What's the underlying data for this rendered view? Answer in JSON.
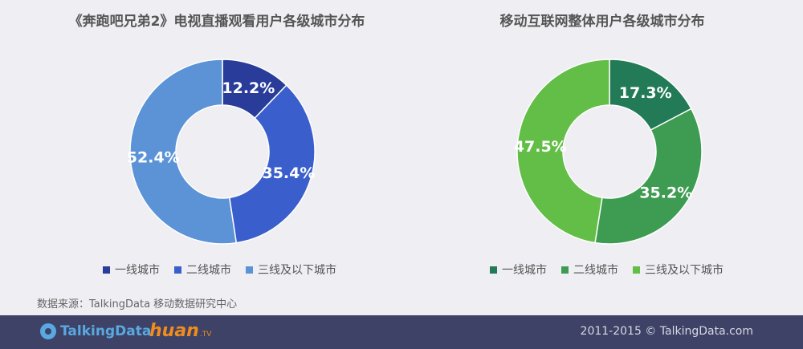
{
  "chart_data": [
    {
      "type": "pie",
      "title": "《奔跑吧兄弟2》电视直播观看用户各级城市分布",
      "categories": [
        "一线城市",
        "二线城市",
        "三线及以下城市"
      ],
      "values": [
        12.2,
        35.4,
        52.4
      ],
      "labels": [
        "12.2%",
        "35.4%",
        "52.4%"
      ],
      "colors": [
        "#2a3c9a",
        "#3a5fcc",
        "#5b93d6"
      ],
      "donut": true,
      "legend": "bottom"
    },
    {
      "type": "pie",
      "title": "移动互联网整体用户各级城市分布",
      "categories": [
        "一线城市",
        "二线城市",
        "三线及以下城市"
      ],
      "values": [
        17.3,
        35.2,
        47.5
      ],
      "labels": [
        "17.3%",
        "35.2%",
        "47.5%"
      ],
      "colors": [
        "#237a57",
        "#3e9c52",
        "#62be46"
      ],
      "donut": true,
      "legend": "bottom"
    }
  ],
  "source": "数据来源：TalkingData 移动数据研究中心",
  "footer": {
    "logo_talkingdata": "TalkingData",
    "logo_huan": "huan",
    "logo_huan_tv": ".TV",
    "copyright": "2011-2015 © TalkingData.com"
  }
}
